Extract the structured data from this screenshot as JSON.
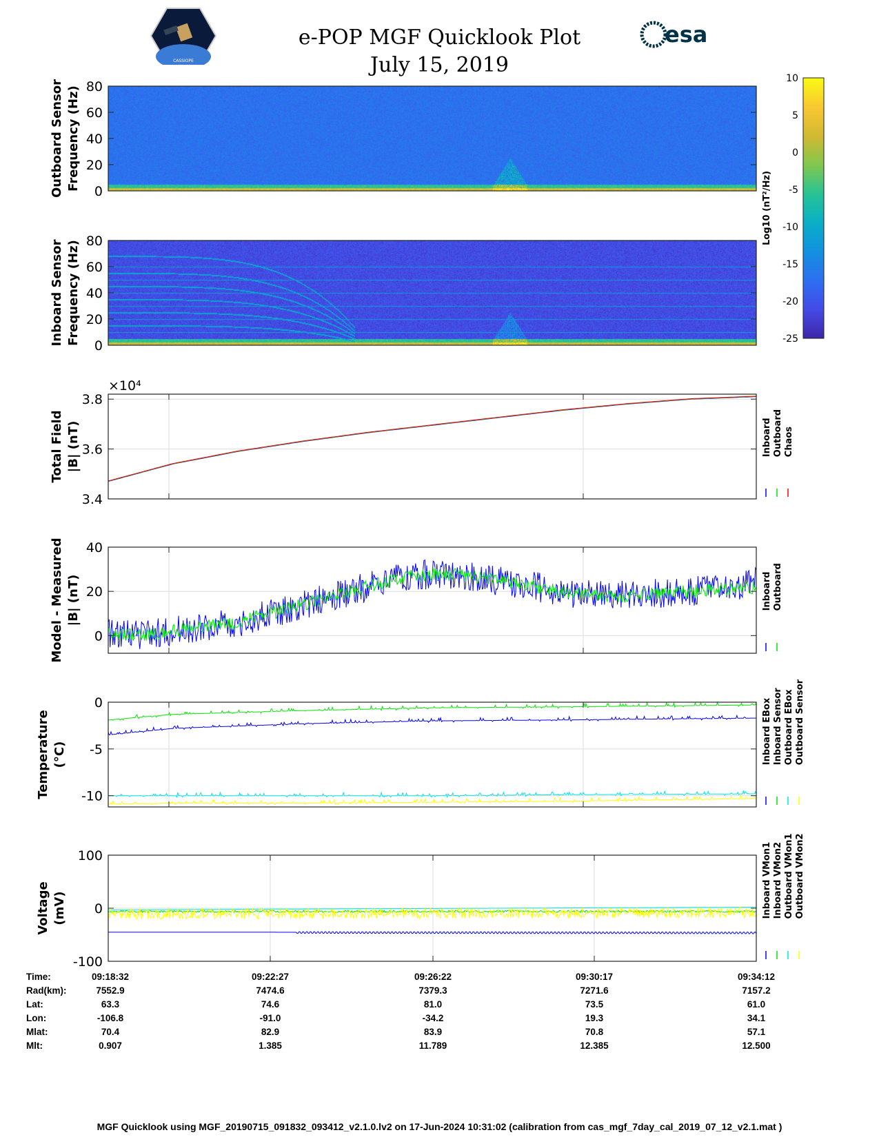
{
  "header": {
    "title": "e-POP MGF Quicklook Plot",
    "date": "July 15, 2019",
    "logo_left": "CASSIOPE",
    "logo_right": "esa"
  },
  "colors": {
    "inboard": "#0000ff",
    "outboard": "#00e600",
    "chaos": "#ff0000",
    "cyan": "#00e5e5",
    "yellow": "#ffff00"
  },
  "chart_data": [
    {
      "type": "heatmap",
      "name": "outboard-spectrogram",
      "ylabel": [
        "Outboard Sensor",
        "Frequency (Hz)"
      ],
      "ylim": [
        0,
        80
      ],
      "yticks": [
        0,
        20,
        40,
        60,
        80
      ],
      "background_level": -17,
      "low_freq_level": 2,
      "burst_fraction": 0.62
    },
    {
      "type": "heatmap",
      "name": "inboard-spectrogram",
      "ylabel": [
        "Inboard Sensor",
        "Frequency (Hz)"
      ],
      "ylim": [
        0,
        80
      ],
      "yticks": [
        0,
        20,
        40,
        60,
        80
      ],
      "background_level": -21,
      "low_freq_level": 2,
      "burst_fraction": 0.62
    },
    {
      "type": "colorbar",
      "label": "Log10 (nT²/Hz)",
      "clim": [
        -25,
        10
      ],
      "ticks": [
        10,
        5,
        0,
        -5,
        -10,
        -15,
        -20,
        -25
      ]
    },
    {
      "type": "line",
      "name": "total-field",
      "ylabel": [
        "Total Field",
        "|B| (nT)"
      ],
      "ylim": [
        3.4,
        3.82
      ],
      "yticks": [
        3.4,
        3.6,
        3.8
      ],
      "tick_labels": [
        "3.4",
        "3.6",
        "3.8"
      ],
      "exponent": "×10⁴",
      "legend": [
        "Inboard",
        "Outboard",
        "Chaos"
      ],
      "legend_colors": [
        "#0000ff",
        "#00e600",
        "#ff0000"
      ],
      "x": [
        0,
        0.1,
        0.2,
        0.3,
        0.4,
        0.5,
        0.6,
        0.7,
        0.8,
        0.9,
        1.0
      ],
      "series": [
        {
          "name": "Chaos",
          "values": [
            3.47,
            3.54,
            3.59,
            3.63,
            3.665,
            3.695,
            3.725,
            3.755,
            3.78,
            3.8,
            3.81
          ]
        }
      ]
    },
    {
      "type": "line",
      "name": "model-measured",
      "ylabel": [
        "Model - Measured",
        "|B| (nT)"
      ],
      "ylim": [
        -8,
        40
      ],
      "yticks": [
        0,
        20,
        40
      ],
      "legend": [
        "Inboard",
        "Outboard"
      ],
      "legend_colors": [
        "#0000ff",
        "#00e600"
      ],
      "x": [
        0,
        0.05,
        0.1,
        0.2,
        0.3,
        0.4,
        0.45,
        0.5,
        0.55,
        0.6,
        0.7,
        0.75,
        0.8,
        0.9,
        1.0
      ],
      "series": [
        {
          "name": "Inboard",
          "values": [
            1,
            0,
            2,
            6,
            14,
            22,
            26,
            28,
            27,
            25,
            20,
            18,
            18,
            20,
            24
          ],
          "spread": 9
        },
        {
          "name": "Outboard",
          "values": [
            1,
            0,
            2,
            6,
            14,
            22,
            26,
            28,
            27,
            25,
            20,
            18,
            18,
            20,
            22
          ],
          "spread": 4
        }
      ]
    },
    {
      "type": "line",
      "name": "temperature",
      "ylabel": [
        "Temperature",
        "(°C)"
      ],
      "ylim": [
        -11.2,
        0
      ],
      "yticks": [
        -10,
        -5,
        0
      ],
      "legend": [
        "Inboard EBox",
        "Inboard Sensor",
        "Outboard EBox",
        "Outboard Sensor"
      ],
      "legend_colors": [
        "#0000ff",
        "#00e600",
        "#00e5e5",
        "#ffff00"
      ],
      "x": [
        0,
        0.1,
        0.3,
        0.5,
        0.7,
        1.0
      ],
      "series": [
        {
          "name": "Inboard EBox",
          "values": [
            -3.5,
            -2.8,
            -2.3,
            -2.0,
            -1.9,
            -1.7
          ]
        },
        {
          "name": "Inboard Sensor",
          "values": [
            -1.9,
            -1.3,
            -0.9,
            -0.6,
            -0.5,
            -0.3
          ]
        },
        {
          "name": "Outboard EBox",
          "values": [
            -10,
            -10,
            -10,
            -10,
            -9.9,
            -9.8
          ]
        },
        {
          "name": "Outboard Sensor",
          "values": [
            -10.9,
            -10.8,
            -10.8,
            -10.7,
            -10.6,
            -10.3
          ]
        }
      ]
    },
    {
      "type": "line",
      "name": "voltage",
      "ylabel": [
        "Voltage",
        "(mV)"
      ],
      "ylim": [
        -100,
        100
      ],
      "yticks": [
        -100,
        0,
        100
      ],
      "legend": [
        "Inboard VMon1",
        "Inboard VMon2",
        "Outboard VMon1",
        "Outboard VMon2"
      ],
      "legend_colors": [
        "#0000ff",
        "#00e600",
        "#00e5e5",
        "#ffff00"
      ],
      "x": [
        0,
        1
      ],
      "series": [
        {
          "name": "Inboard VMon1",
          "values": [
            -45,
            -46
          ]
        },
        {
          "name": "Inboard VMon2",
          "values": [
            -6,
            -6
          ]
        },
        {
          "name": "Outboard VMon1",
          "values": [
            -3,
            2
          ]
        },
        {
          "name": "Outboard VMon2",
          "values": [
            -15,
            -12
          ]
        }
      ]
    }
  ],
  "orbit_table": {
    "row_labels": [
      "Time:",
      "Rad(km):",
      "Lat:",
      "Lon:",
      "Mlat:",
      "Mlt:"
    ],
    "columns": [
      [
        "09:18:32",
        "7552.9",
        "63.3",
        "-106.8",
        "70.4",
        "0.907"
      ],
      [
        "09:22:27",
        "7474.6",
        "74.6",
        "-91.0",
        "82.9",
        "1.385"
      ],
      [
        "09:26:22",
        "7379.3",
        "81.0",
        "-34.2",
        "83.9",
        "11.789"
      ],
      [
        "09:30:17",
        "7271.6",
        "73.5",
        "19.3",
        "70.8",
        "12.385"
      ],
      [
        "09:34:12",
        "7157.2",
        "61.0",
        "34.1",
        "57.1",
        "12.500"
      ]
    ]
  },
  "footer": "MGF Quicklook using MGF_20190715_091832_093412_v2.1.0.lv2 on 17-Jun-2024 10:31:02 (calibration from cas_mgf_7day_cal_2019_07_12_v2.1.mat )"
}
